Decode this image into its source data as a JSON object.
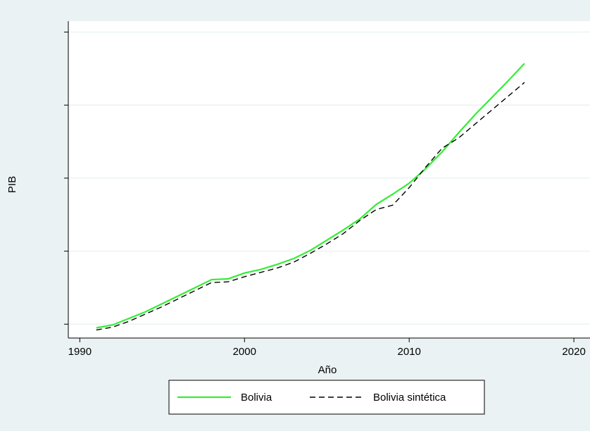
{
  "chart_data": {
    "type": "line",
    "x_label": "Año",
    "y_label": "PIB",
    "x": [
      1991,
      1992,
      1993,
      1994,
      1995,
      1996,
      1997,
      1998,
      1999,
      2000,
      2001,
      2002,
      2003,
      2004,
      2005,
      2006,
      2007,
      2008,
      2009,
      2010,
      2011,
      2012,
      2013,
      2014,
      2015,
      2016,
      2017
    ],
    "series": [
      {
        "name": "Bolivia",
        "color": "#33ee33",
        "dash": "solid",
        "values": [
          -0.05,
          -0.01,
          0.08,
          0.17,
          0.28,
          0.39,
          0.5,
          0.61,
          0.62,
          0.7,
          0.75,
          0.82,
          0.9,
          1.01,
          1.15,
          1.29,
          1.44,
          1.64,
          1.78,
          1.93,
          2.13,
          2.36,
          2.62,
          2.87,
          3.1,
          3.33,
          3.57
        ]
      },
      {
        "name": "Bolivia sintética",
        "color": "#000000",
        "dash": "dashed",
        "values": [
          -0.08,
          -0.04,
          0.04,
          0.14,
          0.24,
          0.35,
          0.46,
          0.57,
          0.58,
          0.65,
          0.71,
          0.77,
          0.85,
          0.97,
          1.1,
          1.24,
          1.42,
          1.57,
          1.63,
          1.87,
          2.15,
          2.41,
          2.55,
          2.74,
          2.93,
          3.12,
          3.31
        ]
      }
    ],
    "xlim": [
      1989.3,
      2020.85
    ],
    "xticks": [
      1990,
      2000,
      2010,
      2020
    ],
    "ylim": [
      -0.19,
      4.15
    ],
    "yticks": [
      0,
      1,
      2,
      3,
      4
    ],
    "grid": true,
    "legend": "bottom"
  }
}
